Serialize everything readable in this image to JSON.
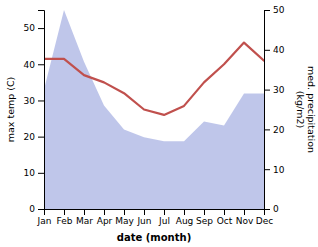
{
  "chart_data": {
    "type": "line",
    "x_label": "date (month)",
    "y_label": "max temp (C)",
    "y2_label": "med. precipitation\n(kg/m2)",
    "categories": [
      "Jan",
      "Feb",
      "Mar",
      "Apr",
      "May",
      "Jun",
      "Jul",
      "Aug",
      "Sep",
      "Oct",
      "Nov",
      "Dec"
    ],
    "series": [
      {
        "type": "area",
        "axis": "y2",
        "color": "#b8c0e8",
        "values": [
          30,
          50,
          37,
          26,
          20,
          18,
          17,
          17,
          22,
          21,
          29,
          29
        ]
      },
      {
        "type": "line",
        "color": "#c0504d",
        "values": [
          41.5,
          41.5,
          37.0,
          35.0,
          32.0,
          27.5,
          26.0,
          28.5,
          35.0,
          40.0,
          46.0,
          41.0
        ]
      }
    ],
    "ylim": [
      0,
      55
    ],
    "yticks": [
      0,
      10,
      20,
      30,
      40,
      50
    ],
    "y2lim": [
      0,
      50
    ],
    "y2ticks": [
      0,
      10,
      20,
      30,
      40,
      50
    ],
    "grid": false
  }
}
